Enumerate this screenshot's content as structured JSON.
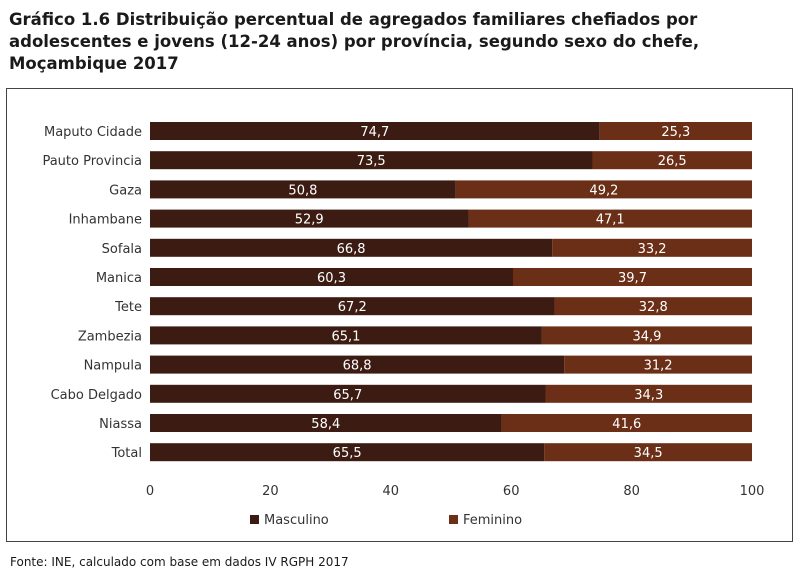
{
  "title_lines": [
    "Gráfico 1.6 Distribuição percentual de agregados familiares chefiados por",
    "adolescentes e jovens (12-24 anos) por província, segundo sexo do chefe,",
    "Moçambique 2017"
  ],
  "source": "Fonte: INE, calculado com base em dados IV RGPH 2017",
  "colors": {
    "masculino": "#3c1c12",
    "feminino": "#6b2e16",
    "label_text": "#ffffff",
    "axis_text": "#333333"
  },
  "chart_data": {
    "type": "bar",
    "orientation": "horizontal",
    "stacked": true,
    "title": "Gráfico 1.6 Distribuição percentual de agregados familiares chefiados por adolescentes e jovens (12-24 anos) por província, segundo sexo do chefe, Moçambique 2017",
    "categories": [
      "Maputo Cidade",
      "Pauto Provincia",
      "Gaza",
      "Inhambane",
      "Sofala",
      "Manica",
      "Tete",
      "Zambezia",
      "Nampula",
      "Cabo Delgado",
      "Niassa",
      "Total"
    ],
    "series": [
      {
        "name": "Masculino",
        "values": [
          74.7,
          73.5,
          50.8,
          52.9,
          66.8,
          60.3,
          67.2,
          65.1,
          68.8,
          65.7,
          58.4,
          65.5
        ],
        "labels": [
          "74,7",
          "73,5",
          "50,8",
          "52,9",
          "66,8",
          "60,3",
          "67,2",
          "65,1",
          "68,8",
          "65,7",
          "58,4",
          "65,5"
        ]
      },
      {
        "name": "Feminino",
        "values": [
          25.3,
          26.5,
          49.2,
          47.1,
          33.2,
          39.7,
          32.8,
          34.9,
          31.2,
          34.3,
          41.6,
          34.5
        ],
        "labels": [
          "25,3",
          "26,5",
          "49,2",
          "47,1",
          "33,2",
          "39,7",
          "32,8",
          "34,9",
          "31,2",
          "34,3",
          "41,6",
          "34,5"
        ]
      }
    ],
    "xlim": [
      0,
      100
    ],
    "xticks": [
      0,
      20,
      40,
      60,
      80,
      100
    ],
    "xlabel": "",
    "ylabel": "",
    "grid": false,
    "legend_position": "bottom"
  }
}
